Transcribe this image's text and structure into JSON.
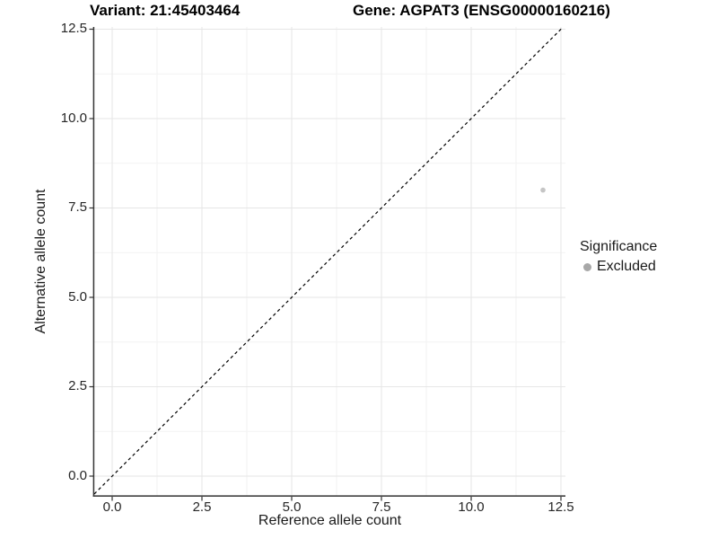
{
  "chart_data": {
    "type": "scatter",
    "title_left": "Variant: 21:45403464",
    "title_right": "Gene: AGPAT3 (ENSG00000160216)",
    "xlabel": "Reference allele count",
    "ylabel": "Alternative allele count",
    "xlim": [
      -0.5,
      12.63
    ],
    "ylim": [
      -0.55,
      12.56
    ],
    "x_ticks": [
      0,
      2.5,
      5,
      7.5,
      10,
      12.5
    ],
    "x_tick_labels": [
      "0.0",
      "2.5",
      "5.0",
      "7.5",
      "10.0",
      "12.5"
    ],
    "y_ticks": [
      0,
      2.5,
      5,
      7.5,
      10,
      12.5
    ],
    "y_tick_labels": [
      "0.0",
      "2.5",
      "5.0",
      "7.5",
      "10.0",
      "12.5"
    ],
    "minor_ticks": [
      1.25,
      3.75,
      6.25,
      8.75,
      11.25
    ],
    "grid": true,
    "series": [
      {
        "name": "Excluded",
        "color": "#c5c5c5",
        "points": [
          {
            "x": 12,
            "y": 8
          }
        ]
      }
    ],
    "reference_line": {
      "kind": "identity",
      "equation": "y = x",
      "style": "dashed",
      "color": "#000000"
    },
    "legend": {
      "title": "Significance",
      "position": "right",
      "entries": [
        {
          "label": "Excluded",
          "marker": "circle",
          "color": "#a8a8a8"
        }
      ]
    },
    "colors": {
      "background": "#ffffff",
      "grid_major": "#e6e6e6",
      "grid_minor": "#f2f2f2",
      "axis_line": "#333333",
      "text": "#1a1a1a"
    }
  }
}
